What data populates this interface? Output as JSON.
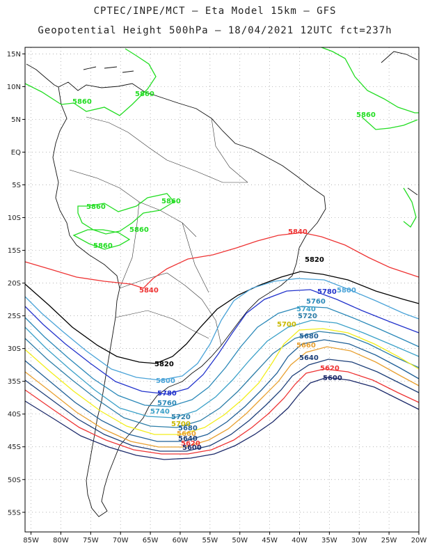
{
  "header": {
    "line1": "CPTEC/INPE/MCT –  Eta Model 15km – GFS",
    "line2": "Geopotential Height 500hPa – 18/04/2021 12UTC fct=237h"
  },
  "axes": {
    "lat_labels": [
      "15N",
      "10N",
      "5N",
      "EQ",
      "5S",
      "10S",
      "15S",
      "20S",
      "25S",
      "30S",
      "35S",
      "40S",
      "45S",
      "50S",
      "55S"
    ],
    "lat_values": [
      15,
      10,
      5,
      0,
      -5,
      -10,
      -15,
      -20,
      -25,
      -30,
      -35,
      -40,
      -45,
      -50,
      -55
    ],
    "lon_labels": [
      "85W",
      "80W",
      "75W",
      "70W",
      "65W",
      "60W",
      "55W",
      "50W",
      "45W",
      "40W",
      "35W",
      "30W",
      "25W",
      "20W"
    ],
    "lon_values": [
      -85,
      -80,
      -75,
      -70,
      -65,
      -60,
      -55,
      -50,
      -45,
      -40,
      -35,
      -30,
      -25,
      -20
    ],
    "lon_range": [
      -86,
      -20
    ],
    "lat_range": [
      -58,
      16
    ],
    "grid": "dotted"
  },
  "contours": [
    {
      "value": "5860",
      "color": "#22dd22"
    },
    {
      "value": "5840",
      "color": "#ee3333"
    },
    {
      "value": "5820",
      "color": "#000000"
    },
    {
      "value": "5800",
      "color": "#4aa3d8"
    },
    {
      "value": "5780",
      "color": "#2233cc"
    },
    {
      "value": "5760",
      "color": "#2a88b8"
    },
    {
      "value": "5740",
      "color": "#3aa0c8"
    },
    {
      "value": "5720",
      "color": "#2d7ea8"
    },
    {
      "value": "5700",
      "color": "#f2ee1a"
    },
    {
      "value": "5680",
      "color": "#1f5f96"
    },
    {
      "value": "5660",
      "color": "#e8a030"
    },
    {
      "value": "5640",
      "color": "#1c3e78"
    },
    {
      "value": "5620",
      "color": "#ee3333"
    },
    {
      "value": "5600",
      "color": "#1c2a6a"
    }
  ]
}
